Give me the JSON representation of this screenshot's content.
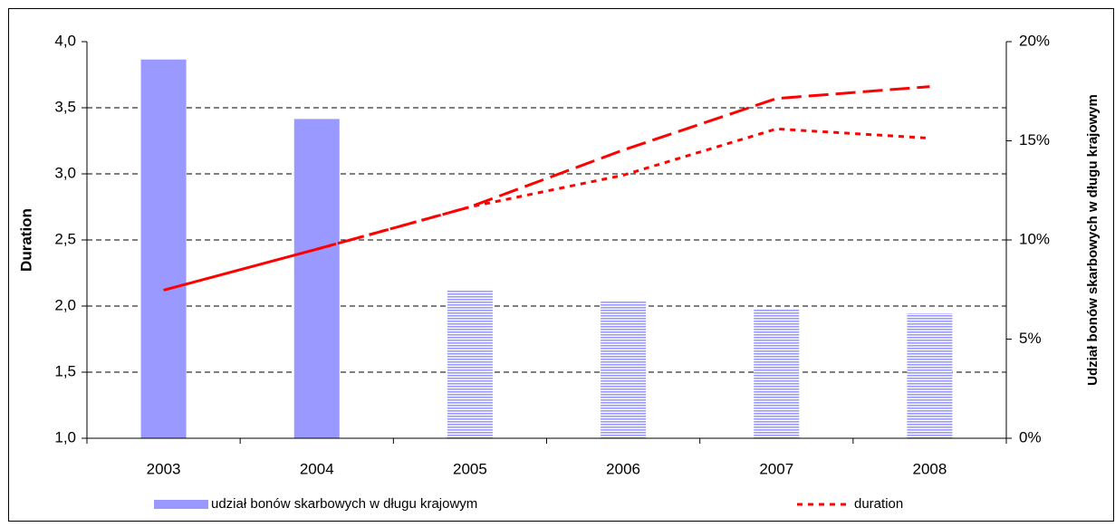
{
  "chart_data": {
    "type": "bar_line",
    "categories": [
      "2003",
      "2004",
      "2005",
      "2006",
      "2007",
      "2008"
    ],
    "y_label": "Duration",
    "y2_label": "Udział bonów skarbowych w długu krajowym",
    "ylim": [
      1,
      4
    ],
    "yticks": [
      {
        "value": 1,
        "label": "1,0"
      },
      {
        "value": 1.5,
        "label": "1,5"
      },
      {
        "value": 2,
        "label": "2,0"
      },
      {
        "value": 2.5,
        "label": "2,5"
      },
      {
        "value": 3,
        "label": "3,0"
      },
      {
        "value": 3.5,
        "label": "3,5"
      },
      {
        "value": 4,
        "label": "4,0"
      }
    ],
    "y2lim": [
      0,
      20
    ],
    "y2ticks": [
      {
        "value": 0,
        "label": "0%"
      },
      {
        "value": 5,
        "label": "5%"
      },
      {
        "value": 10,
        "label": "10%"
      },
      {
        "value": 15,
        "label": "15%"
      },
      {
        "value": 20,
        "label": "20%"
      }
    ],
    "grid": true,
    "legend": "bottom",
    "series": [
      {
        "name": "udział bonów skarbowych w długu krajowym",
        "kind": "bar",
        "axis": "y2",
        "color": "#9999ff",
        "values": [
          19.1,
          16.1,
          7.5,
          6.9,
          6.5,
          6.3
        ],
        "bar_styles": [
          "solid",
          "solid",
          "hatched",
          "hatched",
          "hatched",
          "hatched"
        ]
      },
      {
        "name": "duration",
        "kind": "line",
        "color": "#ff0000",
        "dash": "short",
        "solid_through": 1,
        "values": [
          2.12,
          2.43,
          2.75,
          2.99,
          3.34,
          3.27
        ]
      },
      {
        "kind": "line",
        "color": "#ff0000",
        "dash": "long",
        "values": [
          null,
          2.43,
          2.75,
          3.18,
          3.57,
          3.66
        ]
      }
    ]
  }
}
